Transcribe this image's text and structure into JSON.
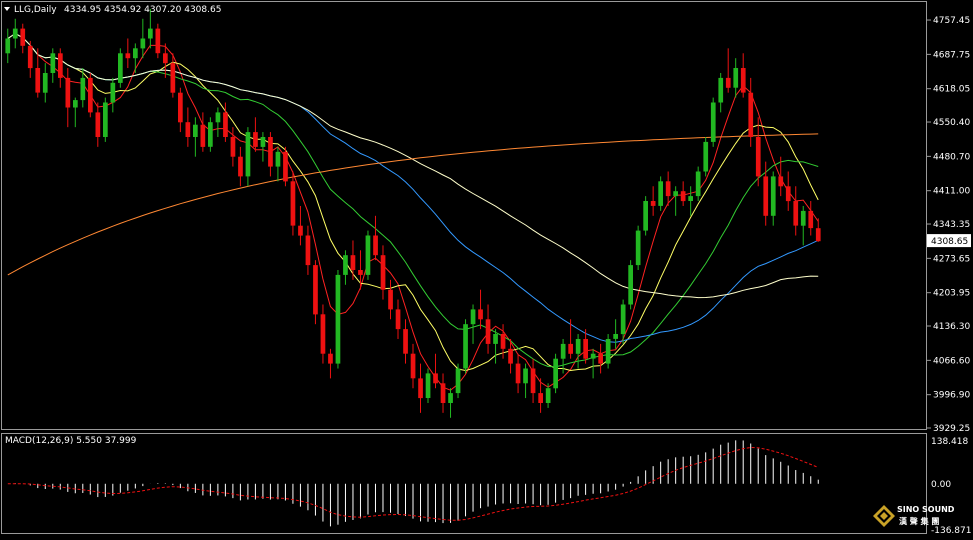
{
  "header": {
    "symbol": "LLG,Daily",
    "ohlc": "4334.95 4354.92 4307.20 4308.65"
  },
  "macd_header": "MACD(12,26,9) 5.550 37.999",
  "current_price_label": "4308.65",
  "logo": {
    "line1": "SINO SOUND",
    "line2": "漢 聲 集 團"
  },
  "chart_data": [
    {
      "type": "candlestick",
      "title": "LLG,Daily",
      "ylim": [
        3929.25,
        4790
      ],
      "y_ticks": [
        "4757.45",
        "4687.75",
        "4618.05",
        "4550.40",
        "4480.70",
        "4411.00",
        "4343.35",
        "4273.65",
        "4203.95",
        "4136.30",
        "4066.60",
        "3996.90",
        "3929.25"
      ],
      "colors": {
        "up": "#22b822",
        "down": "#ee1111",
        "grid": "#ffffff"
      },
      "current_price": 4308.65,
      "ohlc": [
        [
          4690,
          4740,
          4670,
          4720
        ],
        [
          4720,
          4760,
          4700,
          4740
        ],
        [
          4740,
          4750,
          4690,
          4705
        ],
        [
          4705,
          4715,
          4640,
          4660
        ],
        [
          4660,
          4700,
          4600,
          4610
        ],
        [
          4610,
          4670,
          4590,
          4650
        ],
        [
          4650,
          4700,
          4630,
          4690
        ],
        [
          4690,
          4700,
          4620,
          4640
        ],
        [
          4640,
          4660,
          4540,
          4580
        ],
        [
          4580,
          4600,
          4540,
          4595
        ],
        [
          4595,
          4660,
          4580,
          4640
        ],
        [
          4640,
          4650,
          4560,
          4570
        ],
        [
          4570,
          4590,
          4500,
          4520
        ],
        [
          4520,
          4600,
          4510,
          4590
        ],
        [
          4590,
          4640,
          4570,
          4630
        ],
        [
          4630,
          4700,
          4620,
          4690
        ],
        [
          4690,
          4720,
          4660,
          4680
        ],
        [
          4680,
          4710,
          4650,
          4700
        ],
        [
          4700,
          4760,
          4680,
          4720
        ],
        [
          4720,
          4780,
          4700,
          4740
        ],
        [
          4740,
          4750,
          4680,
          4690
        ],
        [
          4690,
          4710,
          4640,
          4670
        ],
        [
          4670,
          4690,
          4600,
          4610
        ],
        [
          4610,
          4620,
          4530,
          4550
        ],
        [
          4550,
          4580,
          4500,
          4520
        ],
        [
          4520,
          4560,
          4480,
          4545
        ],
        [
          4545,
          4570,
          4490,
          4500
        ],
        [
          4500,
          4560,
          4490,
          4550
        ],
        [
          4550,
          4580,
          4520,
          4570
        ],
        [
          4570,
          4590,
          4510,
          4520
        ],
        [
          4520,
          4540,
          4460,
          4480
        ],
        [
          4480,
          4500,
          4420,
          4440
        ],
        [
          4440,
          4540,
          4420,
          4530
        ],
        [
          4530,
          4560,
          4490,
          4500
        ],
        [
          4500,
          4530,
          4470,
          4520
        ],
        [
          4520,
          4530,
          4440,
          4460
        ],
        [
          4460,
          4500,
          4430,
          4490
        ],
        [
          4490,
          4500,
          4420,
          4430
        ],
        [
          4430,
          4450,
          4320,
          4340
        ],
        [
          4340,
          4380,
          4300,
          4320
        ],
        [
          4320,
          4340,
          4240,
          4260
        ],
        [
          4260,
          4270,
          4140,
          4160
        ],
        [
          4160,
          4180,
          4060,
          4080
        ],
        [
          4080,
          4090,
          4030,
          4060
        ],
        [
          4060,
          4250,
          4050,
          4240
        ],
        [
          4240,
          4290,
          4220,
          4280
        ],
        [
          4280,
          4310,
          4230,
          4250
        ],
        [
          4250,
          4290,
          4210,
          4240
        ],
        [
          4240,
          4330,
          4230,
          4320
        ],
        [
          4320,
          4360,
          4270,
          4280
        ],
        [
          4280,
          4300,
          4190,
          4210
        ],
        [
          4210,
          4230,
          4150,
          4170
        ],
        [
          4170,
          4190,
          4110,
          4130
        ],
        [
          4130,
          4150,
          4060,
          4080
        ],
        [
          4080,
          4100,
          4010,
          4030
        ],
        [
          4030,
          4060,
          3960,
          3990
        ],
        [
          3990,
          4050,
          3980,
          4040
        ],
        [
          4040,
          4080,
          4010,
          4020
        ],
        [
          4020,
          4040,
          3960,
          3980
        ],
        [
          3980,
          4010,
          3950,
          4000
        ],
        [
          4000,
          4060,
          3990,
          4050
        ],
        [
          4050,
          4150,
          4040,
          4140
        ],
        [
          4140,
          4180,
          4100,
          4170
        ],
        [
          4170,
          4210,
          4130,
          4150
        ],
        [
          4150,
          4180,
          4080,
          4100
        ],
        [
          4100,
          4130,
          4060,
          4120
        ],
        [
          4120,
          4140,
          4070,
          4090
        ],
        [
          4090,
          4110,
          4040,
          4060
        ],
        [
          4060,
          4080,
          4000,
          4020
        ],
        [
          4020,
          4060,
          3990,
          4050
        ],
        [
          4050,
          4070,
          3980,
          4000
        ],
        [
          4000,
          4030,
          3960,
          3980
        ],
        [
          3980,
          4020,
          3970,
          4010
        ],
        [
          4010,
          4080,
          4000,
          4070
        ],
        [
          4070,
          4110,
          4040,
          4100
        ],
        [
          4100,
          4150,
          4070,
          4080
        ],
        [
          4080,
          4120,
          4050,
          4110
        ],
        [
          4110,
          4130,
          4060,
          4070
        ],
        [
          4070,
          4090,
          4030,
          4080
        ],
        [
          4080,
          4100,
          4040,
          4060
        ],
        [
          4060,
          4120,
          4050,
          4110
        ],
        [
          4110,
          4150,
          4090,
          4120
        ],
        [
          4120,
          4190,
          4100,
          4180
        ],
        [
          4180,
          4270,
          4170,
          4260
        ],
        [
          4260,
          4340,
          4250,
          4330
        ],
        [
          4330,
          4400,
          4320,
          4390
        ],
        [
          4390,
          4420,
          4360,
          4380
        ],
        [
          4380,
          4440,
          4370,
          4430
        ],
        [
          4430,
          4450,
          4380,
          4400
        ],
        [
          4400,
          4420,
          4360,
          4410
        ],
        [
          4410,
          4430,
          4380,
          4390
        ],
        [
          4390,
          4420,
          4360,
          4400
        ],
        [
          4400,
          4460,
          4390,
          4450
        ],
        [
          4450,
          4520,
          4440,
          4510
        ],
        [
          4510,
          4600,
          4500,
          4590
        ],
        [
          4590,
          4650,
          4570,
          4640
        ],
        [
          4640,
          4700,
          4610,
          4620
        ],
        [
          4620,
          4680,
          4600,
          4660
        ],
        [
          4660,
          4690,
          4600,
          4610
        ],
        [
          4610,
          4640,
          4500,
          4520
        ],
        [
          4520,
          4560,
          4420,
          4440
        ],
        [
          4440,
          4470,
          4340,
          4360
        ],
        [
          4360,
          4450,
          4340,
          4440
        ],
        [
          4440,
          4480,
          4400,
          4420
        ],
        [
          4420,
          4450,
          4370,
          4390
        ],
        [
          4390,
          4420,
          4320,
          4340
        ],
        [
          4340,
          4380,
          4300,
          4370
        ],
        [
          4370,
          4390,
          4320,
          4335
        ],
        [
          4334.95,
          4354.92,
          4307.2,
          4308.65
        ]
      ]
    },
    {
      "type": "bar",
      "title": "MACD(12,26,9) 5.550 37.999",
      "ylim": [
        -136.871,
        138.418
      ],
      "y_ticks": [
        "138.418",
        "0.00",
        "-136.871"
      ],
      "colors": {
        "histogram": "#ffffff",
        "signal": "#ee1111"
      }
    }
  ]
}
